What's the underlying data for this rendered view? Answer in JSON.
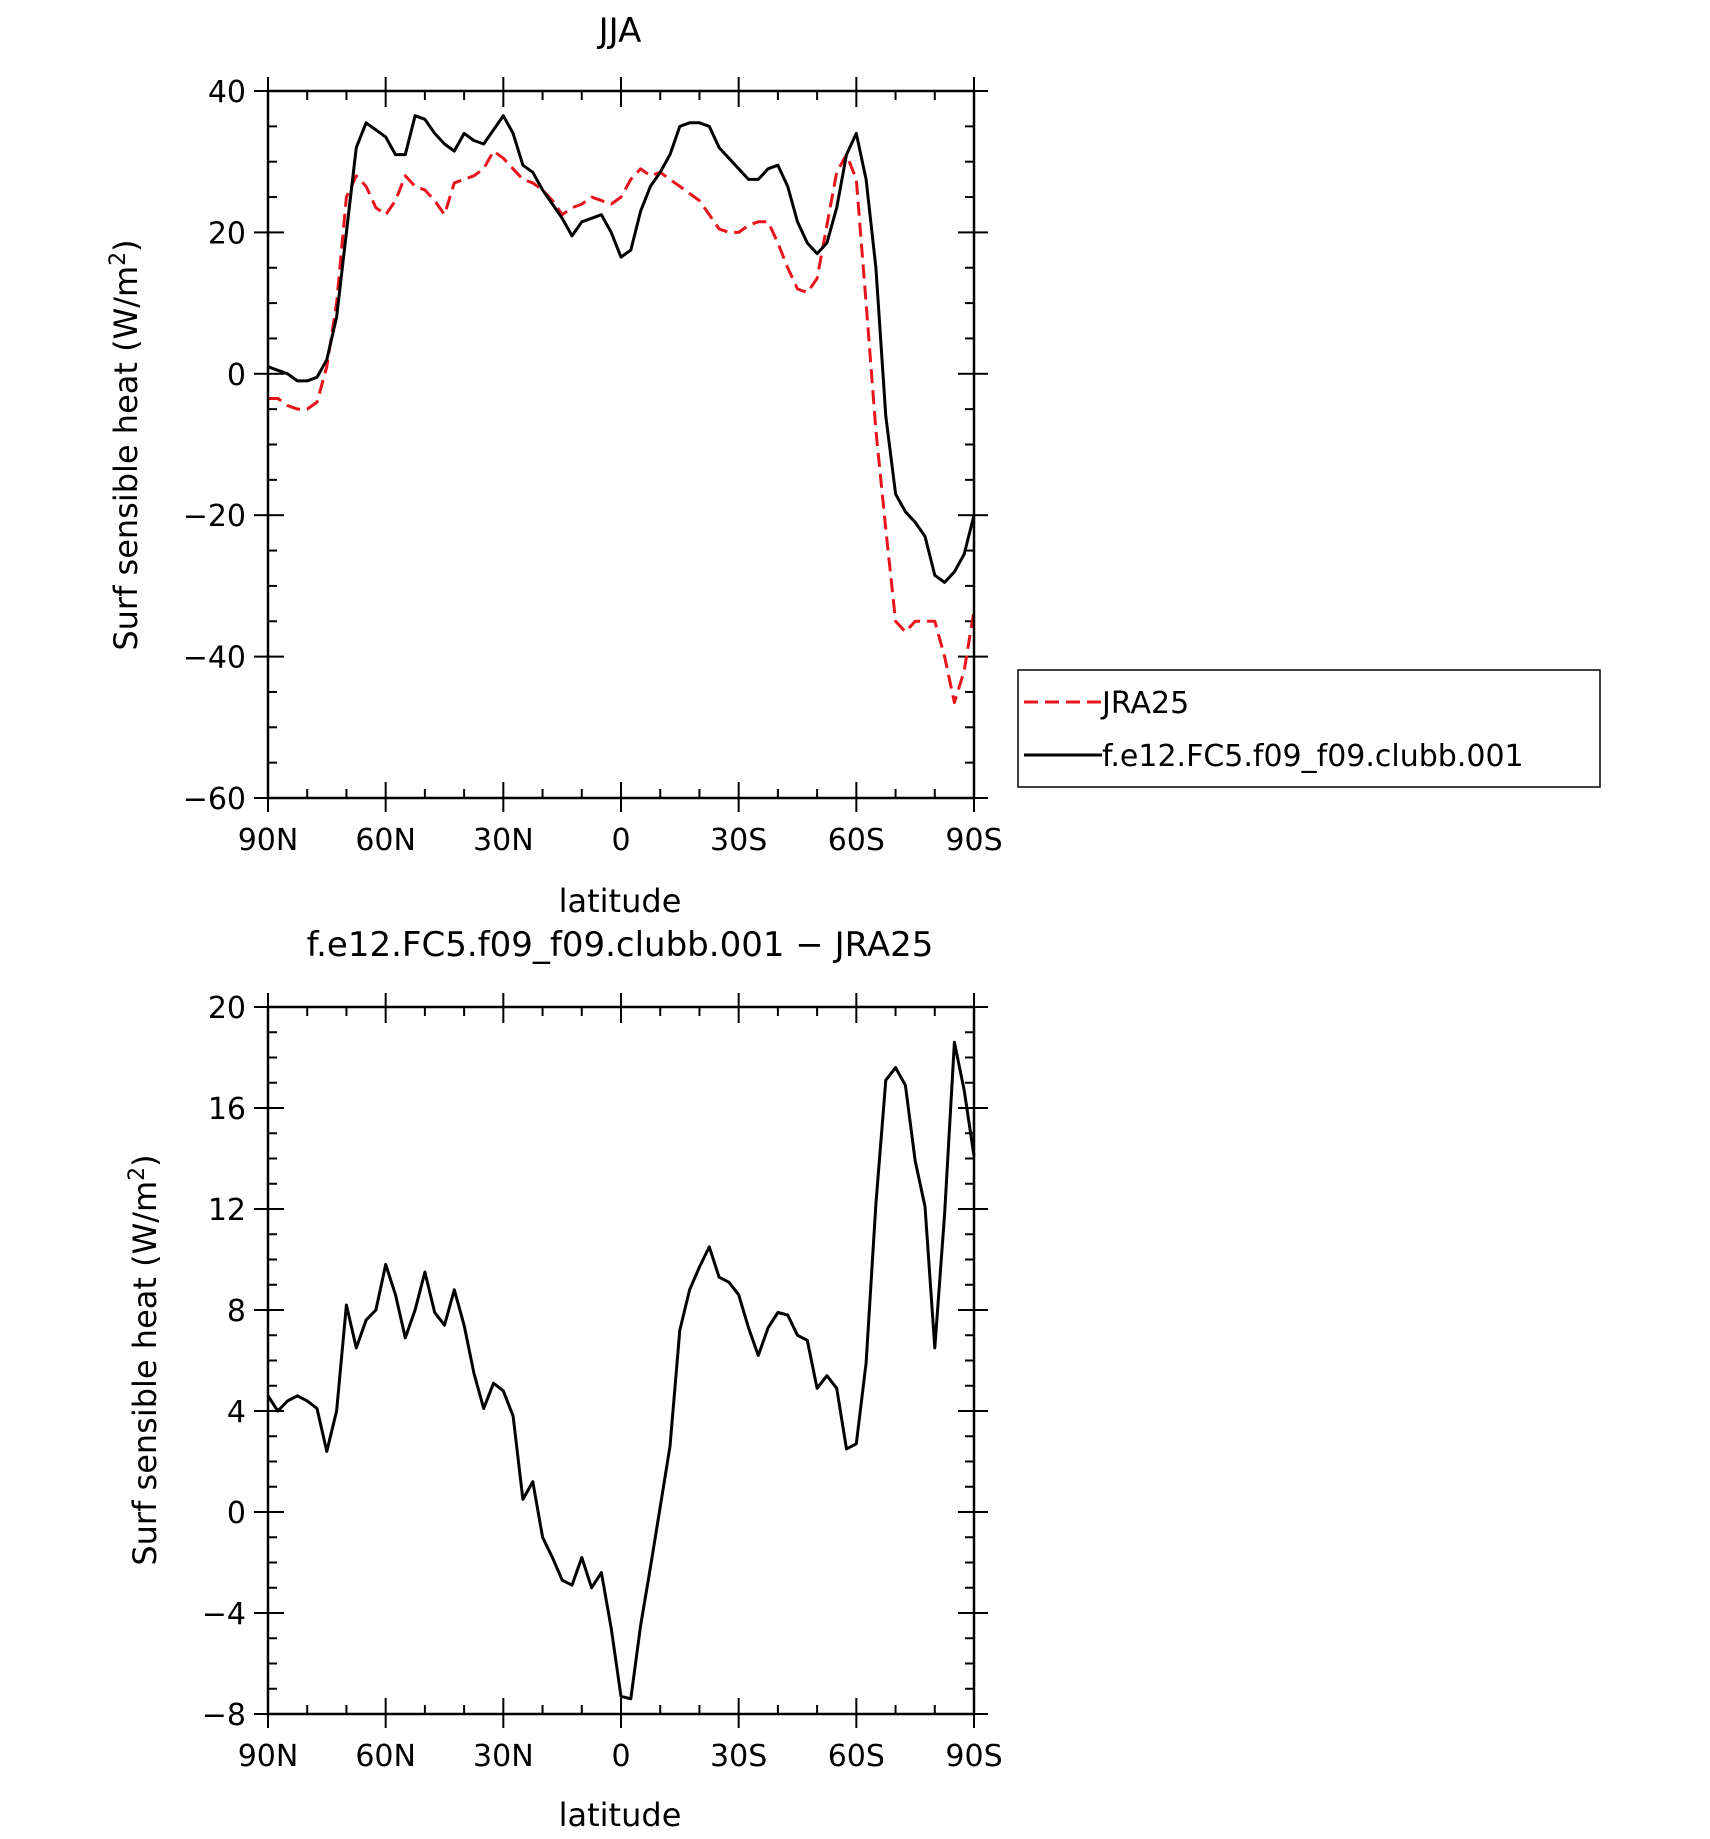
{
  "colors": {
    "reference": "#e8141c",
    "model": "#000000"
  },
  "chart_data": [
    {
      "type": "line",
      "title": "JJA",
      "xlabel": "latitude",
      "ylabel": "Surf sensible heat (W/m",
      "ylabel_sup": "2",
      "ylabel_tail": ")",
      "xlim": [
        90,
        -90
      ],
      "ylim": [
        -60,
        40
      ],
      "x_ticks": [
        90,
        60,
        30,
        0,
        -30,
        -60,
        -90
      ],
      "x_tick_labels": [
        "90N",
        "60N",
        "30N",
        "0",
        "30S",
        "60S",
        "90S"
      ],
      "y_ticks": [
        40,
        20,
        0,
        -20,
        -40,
        -60
      ],
      "y_tick_labels": [
        "40",
        "20",
        "0",
        "−20",
        "−40",
        "−60"
      ],
      "legend": {
        "position": "right-middle",
        "entries": [
          "JRA25",
          "f.e12.FC5.f09_f09.clubb.001"
        ]
      },
      "series": [
        {
          "name": "JRA25",
          "style": "dashed",
          "x": [
            90,
            87.5,
            85,
            82.5,
            80,
            77.5,
            75,
            72.5,
            70,
            67.5,
            65,
            62.5,
            60,
            57.5,
            55,
            52.5,
            50,
            47.5,
            45,
            42.5,
            40,
            37.5,
            35,
            32.5,
            30,
            27.5,
            25,
            22.5,
            20,
            17.5,
            15,
            12.5,
            10,
            7.5,
            5,
            2.5,
            0,
            -2.5,
            -5,
            -7.5,
            -10,
            -12.5,
            -15,
            -17.5,
            -20,
            -22.5,
            -25,
            -27.5,
            -30,
            -32.5,
            -35,
            -37.5,
            -40,
            -42.5,
            -45,
            -47.5,
            -50,
            -52.5,
            -55,
            -57.5,
            -60,
            -62.5,
            -65,
            -67.5,
            -70,
            -72.5,
            -75,
            -77.5,
            -80,
            -82.5,
            -85,
            -87.5,
            -90
          ],
          "y": [
            -3.5,
            -3.5,
            -4.5,
            -5.0,
            -5.0,
            -4.0,
            1.0,
            10.0,
            25.0,
            28.0,
            26.5,
            23.5,
            22.5,
            24.5,
            28.0,
            26.5,
            26.0,
            24.5,
            22.5,
            27.0,
            27.5,
            28.0,
            29.0,
            31.5,
            30.5,
            29.0,
            27.5,
            27.0,
            26.0,
            24.5,
            22.5,
            23.5,
            24.0,
            25.0,
            24.5,
            24.0,
            25.0,
            27.5,
            29.0,
            28.0,
            28.5,
            27.5,
            26.5,
            25.5,
            24.5,
            22.5,
            20.5,
            20.0,
            20.0,
            21.0,
            21.5,
            21.5,
            18.5,
            15.0,
            12.0,
            11.5,
            13.5,
            21.0,
            28.5,
            31.0,
            27.5,
            10.0,
            -8.0,
            -22.0,
            -35.0,
            -36.5,
            -35.0,
            -35.0,
            -35.0,
            -40.0,
            -46.5,
            -42.0,
            -33.5
          ]
        },
        {
          "name": "f.e12.FC5.f09_f09.clubb.001",
          "style": "solid",
          "x": [
            90,
            87.5,
            85,
            82.5,
            80,
            77.5,
            75,
            72.5,
            70,
            67.5,
            65,
            62.5,
            60,
            57.5,
            55,
            52.5,
            50,
            47.5,
            45,
            42.5,
            40,
            37.5,
            35,
            32.5,
            30,
            27.5,
            25,
            22.5,
            20,
            17.5,
            15,
            12.5,
            10,
            7.5,
            5,
            2.5,
            0,
            -2.5,
            -5,
            -7.5,
            -10,
            -12.5,
            -15,
            -17.5,
            -20,
            -22.5,
            -25,
            -27.5,
            -30,
            -32.5,
            -35,
            -37.5,
            -40,
            -42.5,
            -45,
            -47.5,
            -50,
            -52.5,
            -55,
            -57.5,
            -60,
            -62.5,
            -65,
            -67.5,
            -70,
            -72.5,
            -75,
            -77.5,
            -80,
            -82.5,
            -85,
            -87.5,
            -90
          ],
          "y": [
            1.0,
            0.5,
            0.0,
            -1.0,
            -1.0,
            -0.5,
            2.0,
            8.0,
            20.0,
            32.0,
            35.5,
            34.5,
            33.5,
            31.0,
            31.0,
            36.5,
            36.0,
            34.0,
            32.5,
            31.5,
            34.0,
            33.0,
            32.5,
            34.5,
            36.5,
            34.0,
            29.5,
            28.5,
            26.0,
            24.0,
            22.0,
            19.5,
            21.5,
            22.0,
            22.5,
            20.0,
            16.5,
            17.5,
            23.0,
            26.5,
            28.5,
            31.0,
            35.0,
            35.5,
            35.5,
            35.0,
            32.0,
            30.5,
            29.0,
            27.5,
            27.5,
            29.0,
            29.5,
            26.5,
            21.5,
            18.5,
            17.0,
            18.5,
            23.5,
            31.0,
            34.0,
            27.5,
            15.0,
            -6.0,
            -17.0,
            -19.5,
            -21.0,
            -23.0,
            -28.5,
            -29.5,
            -28.0,
            -25.5,
            -20.0
          ]
        }
      ]
    },
    {
      "type": "line",
      "title": "f.e12.FC5.f09_f09.clubb.001 − JRA25",
      "xlabel": "latitude",
      "ylabel": "Surf sensible heat (W/m",
      "ylabel_sup": "2",
      "ylabel_tail": ")",
      "xlim": [
        90,
        -90
      ],
      "ylim": [
        -8,
        20
      ],
      "x_ticks": [
        90,
        60,
        30,
        0,
        -30,
        -60,
        -90
      ],
      "x_tick_labels": [
        "90N",
        "60N",
        "30N",
        "0",
        "30S",
        "60S",
        "90S"
      ],
      "y_ticks": [
        20,
        16,
        12,
        8,
        4,
        0,
        -4,
        -8
      ],
      "y_tick_labels": [
        "20",
        "16",
        "12",
        "8",
        "4",
        "0",
        "−4",
        "−8"
      ],
      "series": [
        {
          "style": "solid",
          "x": [
            90,
            87.5,
            85,
            82.5,
            80,
            77.5,
            75,
            72.5,
            70,
            67.5,
            65,
            62.5,
            60,
            57.5,
            55,
            52.5,
            50,
            47.5,
            45,
            42.5,
            40,
            37.5,
            35,
            32.5,
            30,
            27.5,
            25,
            22.5,
            20,
            17.5,
            15,
            12.5,
            10,
            7.5,
            5,
            2.5,
            0,
            -2.5,
            -5,
            -7.5,
            -10,
            -12.5,
            -15,
            -17.5,
            -20,
            -22.5,
            -25,
            -27.5,
            -30,
            -32.5,
            -35,
            -37.5,
            -40,
            -42.5,
            -45,
            -47.5,
            -50,
            -52.5,
            -55,
            -57.5,
            -60,
            -62.5,
            -65,
            -67.5,
            -70,
            -72.5,
            -75,
            -77.5,
            -80,
            -82.5,
            -85,
            -87.5,
            -90
          ],
          "y": [
            4.6,
            4.0,
            4.4,
            4.6,
            4.4,
            4.1,
            2.4,
            4.0,
            8.2,
            6.5,
            7.6,
            8.0,
            9.8,
            8.6,
            6.9,
            8.0,
            9.5,
            7.9,
            7.4,
            8.8,
            7.4,
            5.5,
            4.1,
            5.1,
            4.8,
            3.8,
            0.5,
            1.2,
            -1.0,
            -1.8,
            -2.7,
            -2.9,
            -1.8,
            -3.0,
            -2.4,
            -4.6,
            -7.3,
            -7.4,
            -4.5,
            -2.2,
            0.2,
            2.6,
            7.2,
            8.8,
            9.7,
            10.5,
            9.3,
            9.1,
            8.6,
            7.3,
            6.2,
            7.3,
            7.9,
            7.8,
            7.0,
            6.8,
            4.9,
            5.4,
            4.9,
            2.5,
            2.7,
            5.9,
            12.2,
            17.1,
            17.6,
            16.9,
            13.9,
            12.1,
            6.5,
            11.8,
            18.6,
            16.7,
            14.1
          ]
        }
      ]
    }
  ]
}
